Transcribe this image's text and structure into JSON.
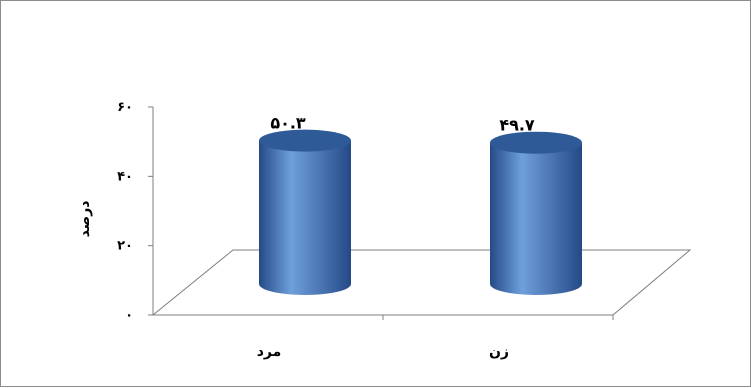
{
  "chart_data": {
    "type": "bar",
    "style": "3d-cylinder",
    "categories": [
      "مرد",
      "زن"
    ],
    "series": [
      {
        "values": [
          50.3,
          49.7
        ],
        "data_labels": [
          "۵۰.۳",
          "۴۹.۷"
        ]
      }
    ],
    "ylabel": "درصد",
    "ylim": [
      0,
      60
    ],
    "yticks": [
      0,
      20,
      40,
      60
    ],
    "ytick_labels": [
      "۰",
      "۲۰",
      "۴۰",
      "۶۰"
    ],
    "grid": false,
    "legend": "none",
    "colors": {
      "bar": "#4f81bd",
      "bar_light": "#6fa0dc",
      "bar_dark": "#244a86",
      "bar_top": "#2e5a98",
      "axis": "#7f7f7f"
    }
  }
}
